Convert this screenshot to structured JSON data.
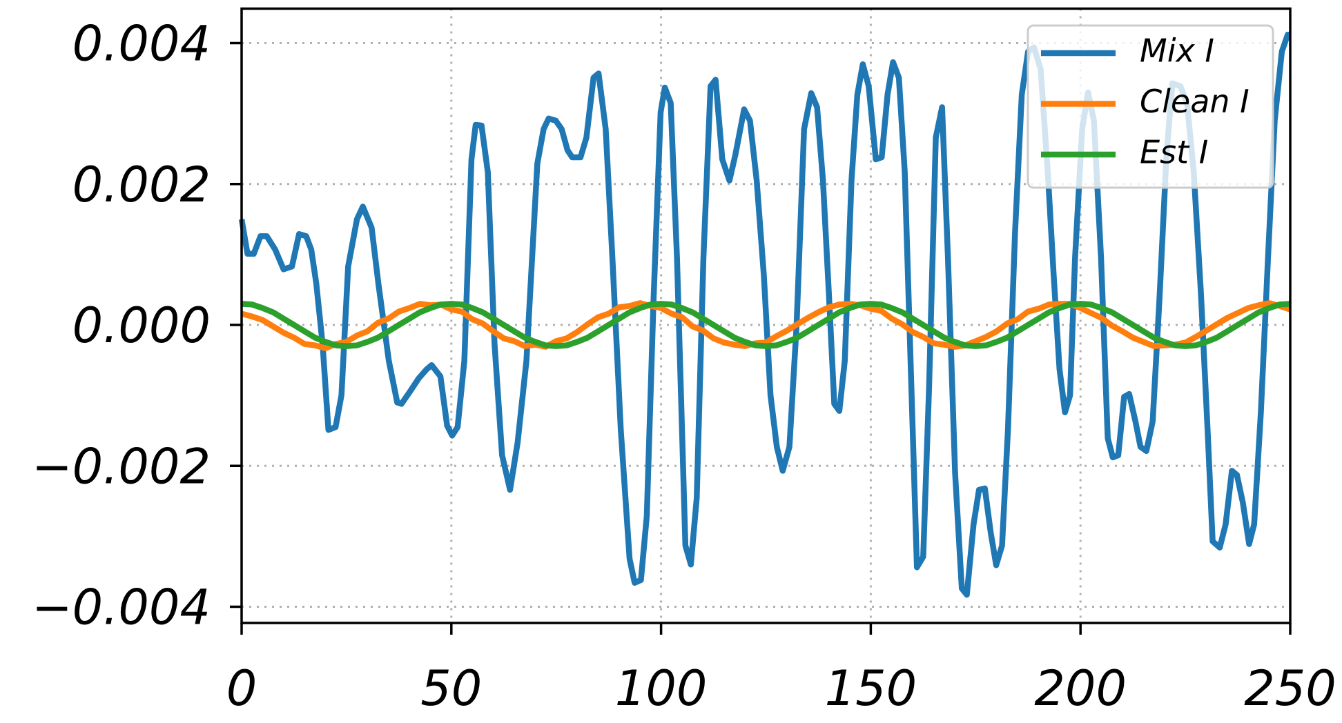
{
  "chart_data": {
    "type": "line",
    "x": [
      0,
      2.5,
      5,
      7.5,
      10,
      12.5,
      15,
      17.5,
      20,
      22.5,
      25,
      27.5,
      30,
      32.5,
      35,
      37.5,
      40,
      42.5,
      45,
      47.5,
      50,
      52.5,
      55,
      57.5,
      60,
      62.5,
      65,
      67.5,
      70,
      72.5,
      75,
      77.5,
      80,
      82.5,
      85,
      87.5,
      90,
      92.5,
      95,
      97.5,
      100,
      102.5,
      105,
      107.5,
      110,
      112.5,
      115,
      117.5,
      120,
      122.5,
      125,
      127.5,
      130,
      132.5,
      135,
      137.5,
      140,
      142.5,
      145,
      147.5,
      150,
      152.5,
      155,
      157.5,
      160,
      162.5,
      165,
      167.5,
      170,
      172.5,
      175,
      177.5,
      180,
      182.5,
      185,
      187.5,
      190,
      192.5,
      195,
      197.5,
      200,
      202.5,
      205,
      207.5,
      210,
      212.5,
      215,
      217.5,
      220,
      222.5,
      225,
      227.5,
      230,
      232.5,
      235,
      237.5,
      240,
      242.5,
      245,
      247.5,
      250
    ],
    "series": [
      {
        "name": "Mix I",
        "color": "#1f77b4",
        "x": [
          0,
          1.4,
          2.9,
          4.5,
          6,
          8,
          10,
          12,
          13.7,
          15.4,
          16.6,
          17.8,
          19.3,
          20.7,
          22.4,
          23.8,
          25.4,
          27.5,
          28.9,
          31,
          32.6,
          35.1,
          37.1,
          38.1,
          40.2,
          42.2,
          44.1,
          45.3,
          47.4,
          49,
          50.2,
          51.5,
          53.1,
          54.8,
          55.8,
          57.2,
          58.7,
          60.3,
          62.1,
          64,
          65.8,
          67.9,
          70.5,
          72,
          73.2,
          74.9,
          76.3,
          77.7,
          78.8,
          80.8,
          82.2,
          83.9,
          85.1,
          86.8,
          88.4,
          90.4,
          92.5,
          93.7,
          95.2,
          96.6,
          98.2,
          99.9,
          100.9,
          102.3,
          103.8,
          105.8,
          107.1,
          108.5,
          110.1,
          111.8,
          113,
          114.6,
          116.3,
          117.7,
          119.8,
          121.2,
          122.8,
          124.5,
          126.1,
          127.6,
          129,
          130.6,
          132.3,
          134.1,
          135.8,
          137.2,
          138.6,
          140.1,
          141.3,
          142.5,
          143.8,
          145.4,
          146.8,
          148.1,
          149.5,
          151.2,
          152.6,
          154,
          155.3,
          156.7,
          158.1,
          159.8,
          161,
          162.5,
          163.9,
          165.5,
          167,
          168.4,
          170.1,
          171.7,
          172.9,
          174.5,
          175.8,
          177.2,
          178.6,
          179.9,
          181.3,
          182.7,
          184.4,
          186,
          187.5,
          188.9,
          190.5,
          192.2,
          193.6,
          195,
          196.3,
          197.5,
          198.7,
          200.4,
          201.8,
          203.2,
          204.9,
          206.5,
          207.7,
          209,
          210.4,
          211.6,
          213.1,
          214.3,
          215.7,
          217.2,
          218.8,
          220.5,
          221.9,
          223.8,
          225.4,
          227,
          228.7,
          230.3,
          231.5,
          233.2,
          234.6,
          236.1,
          237.3,
          238.7,
          240.2,
          241.4,
          243,
          244.7,
          246.3,
          248,
          249.4,
          250
        ],
        "values": [
          0.0015,
          0.00101,
          0.00101,
          0.00126,
          0.00126,
          0.00107,
          0.00079,
          0.00083,
          0.00129,
          0.00126,
          0.00107,
          0.00059,
          -0.00027,
          -0.00149,
          -0.00145,
          -0.001,
          0.00083,
          0.0015,
          0.00168,
          0.00138,
          0.00059,
          -0.00051,
          -0.0011,
          -0.00112,
          -0.00094,
          -0.00076,
          -0.00063,
          -0.00057,
          -0.00073,
          -0.00143,
          -0.00157,
          -0.00145,
          -0.00051,
          0.00235,
          0.00284,
          0.00283,
          0.00217,
          -0.00027,
          -0.00185,
          -0.00234,
          -0.00167,
          -0.00051,
          0.00229,
          0.00278,
          0.00293,
          0.0029,
          0.00278,
          0.00248,
          0.00238,
          0.00238,
          0.00266,
          0.00351,
          0.00357,
          0.00278,
          0.00095,
          -0.00149,
          -0.00332,
          -0.00366,
          -0.00362,
          -0.00271,
          0.00034,
          0.00302,
          0.00337,
          0.00315,
          0.00095,
          -0.00313,
          -0.0034,
          -0.00246,
          0.00095,
          0.00339,
          0.00348,
          0.00235,
          0.00205,
          0.00241,
          0.00306,
          0.0029,
          0.00205,
          0.00071,
          -0.001,
          -0.00173,
          -0.00207,
          -0.00173,
          -2e-05,
          0.00278,
          0.00329,
          0.00309,
          0.00205,
          0.00034,
          -0.00112,
          -0.00122,
          -0.00051,
          0.00205,
          0.00327,
          0.0037,
          0.00339,
          0.00235,
          0.00238,
          0.00327,
          0.00373,
          0.00351,
          0.00217,
          -0.00112,
          -0.00344,
          -0.00329,
          -0.00088,
          0.00266,
          0.00309,
          0.00095,
          -0.0021,
          -0.00374,
          -0.00383,
          -0.00283,
          -0.00234,
          -0.00232,
          -0.00295,
          -0.00341,
          -0.00313,
          -0.00149,
          0.00132,
          0.00327,
          0.00388,
          0.00394,
          0.00363,
          0.00217,
          0.00071,
          -0.00063,
          -0.00124,
          -0.001,
          0.00095,
          0.00278,
          0.0033,
          0.0029,
          0.00095,
          -0.00161,
          -0.00188,
          -0.00185,
          -0.00102,
          -0.00098,
          -0.00137,
          -0.00173,
          -0.00179,
          -0.00137,
          0.00034,
          0.00241,
          0.00343,
          0.00339,
          0.00315,
          0.00217,
          0.00046,
          -0.00149,
          -0.00307,
          -0.00316,
          -0.00283,
          -0.00207,
          -0.00213,
          -0.00252,
          -0.00311,
          -0.00283,
          -0.00124,
          0.00095,
          0.0029,
          0.00388,
          0.00412,
          0.00412
        ]
      },
      {
        "name": "Clean I",
        "color": "#ff7f0e",
        "values": [
          0.00016,
          0.00012,
          7e-05,
          -2e-05,
          -0.00011,
          -0.00018,
          -0.00027,
          -0.00029,
          -0.00033,
          -0.00027,
          -0.00024,
          -0.00015,
          -9e-05,
          3e-05,
          9e-05,
          0.00019,
          0.00024,
          0.0003,
          0.00028,
          0.00029,
          0.00022,
          0.00019,
          8e-05,
          2e-05,
          -9e-05,
          -0.00019,
          -0.00023,
          -0.0003,
          -0.00028,
          -0.00031,
          -0.00023,
          -0.00019,
          -0.0001,
          1e-05,
          0.00011,
          0.00016,
          0.00025,
          0.00027,
          0.00031,
          0.00027,
          0.00024,
          0.00016,
          0.00011,
          -2e-05,
          -8e-05,
          -0.00019,
          -0.00025,
          -0.00028,
          -0.0003,
          -0.00026,
          -0.00025,
          -0.00016,
          -8e-05,
          1e-05,
          0.0001,
          0.00018,
          0.00025,
          0.00029,
          0.0003,
          0.00028,
          0.00023,
          0.0002,
          9e-05,
          1e-05,
          -0.0001,
          -0.00017,
          -0.00026,
          -0.00028,
          -0.00031,
          -0.00029,
          -0.00023,
          -0.00017,
          -9e-05,
          2e-05,
          8e-05,
          0.00019,
          0.00023,
          0.00029,
          0.0003,
          0.0003,
          0.00024,
          0.00017,
          0.0001,
          -1e-05,
          -9e-05,
          -0.00018,
          -0.00024,
          -0.0003,
          -0.00029,
          -0.00028,
          -0.00025,
          -0.00017,
          -8e-05,
          1e-05,
          0.0001,
          0.00017,
          0.00024,
          0.00028,
          0.00031,
          0.00027,
          0.00022
        ]
      },
      {
        "name": "Est I",
        "color": "#2ca02c",
        "values": [
          0.0003,
          0.00029,
          0.00024,
          0.00018,
          9e-05,
          0,
          -9e-05,
          -0.00018,
          -0.00024,
          -0.00029,
          -0.0003,
          -0.00029,
          -0.00024,
          -0.00018,
          -9e-05,
          0,
          9e-05,
          0.00018,
          0.00024,
          0.00029,
          0.0003,
          0.00029,
          0.00024,
          0.00018,
          9e-05,
          0,
          -9e-05,
          -0.00018,
          -0.00024,
          -0.00029,
          -0.0003,
          -0.00029,
          -0.00024,
          -0.00018,
          -9e-05,
          0,
          9e-05,
          0.00018,
          0.00024,
          0.00029,
          0.0003,
          0.00029,
          0.00024,
          0.00018,
          9e-05,
          0,
          -9e-05,
          -0.00018,
          -0.00024,
          -0.00029,
          -0.0003,
          -0.00029,
          -0.00024,
          -0.00018,
          -9e-05,
          0,
          9e-05,
          0.00018,
          0.00024,
          0.00029,
          0.0003,
          0.00029,
          0.00024,
          0.00018,
          9e-05,
          0,
          -9e-05,
          -0.00018,
          -0.00024,
          -0.00029,
          -0.0003,
          -0.00029,
          -0.00024,
          -0.00018,
          -9e-05,
          0,
          9e-05,
          0.00018,
          0.00024,
          0.00029,
          0.0003,
          0.00029,
          0.00024,
          0.00018,
          9e-05,
          0,
          -9e-05,
          -0.00018,
          -0.00024,
          -0.00029,
          -0.0003,
          -0.00029,
          -0.00024,
          -0.00018,
          -9e-05,
          0,
          9e-05,
          0.00018,
          0.00024,
          0.00029,
          0.0003
        ]
      }
    ],
    "xlim": [
      0,
      250
    ],
    "xticks": [
      0,
      50,
      100,
      150,
      200,
      250
    ],
    "ylim": [
      -0.00423,
      0.00449
    ],
    "yticks": [
      {
        "value": -0.004,
        "label": "−0.004"
      },
      {
        "value": -0.002,
        "label": "−0.002"
      },
      {
        "value": 0,
        "label": "0.000"
      },
      0.002,
      0.004
    ],
    "grid": true,
    "legend": "upper right"
  }
}
